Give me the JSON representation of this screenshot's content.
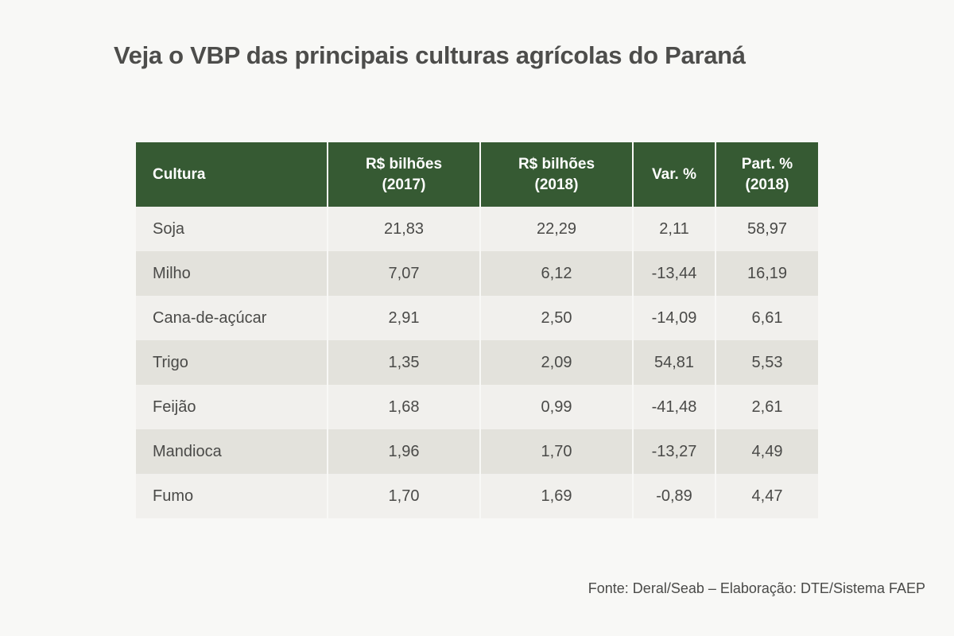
{
  "title": "Veja o VBP das principais culturas agrícolas do Paraná",
  "source": "Fonte: Deral/Seab – Elaboração: DTE/Sistema FAEP",
  "colors": {
    "header_bg": "#365a33",
    "row_light": "#f1f0ed",
    "row_dark": "#e3e2dc",
    "page_bg": "#f8f8f6"
  },
  "chart_data": {
    "type": "table",
    "title": "Veja o VBP das principais culturas agrícolas do Paraná",
    "columns": [
      {
        "line1": "Cultura",
        "line2": ""
      },
      {
        "line1": "R$ bilhões",
        "line2": "(2017)"
      },
      {
        "line1": "R$ bilhões",
        "line2": "(2018)"
      },
      {
        "line1": "Var. %",
        "line2": ""
      },
      {
        "line1": "Part. %",
        "line2": "(2018)"
      }
    ],
    "rows": [
      [
        "Soja",
        "21,83",
        "22,29",
        "2,11",
        "58,97"
      ],
      [
        "Milho",
        "7,07",
        "6,12",
        "-13,44",
        "16,19"
      ],
      [
        "Cana-de-açúcar",
        "2,91",
        "2,50",
        "-14,09",
        "6,61"
      ],
      [
        "Trigo",
        "1,35",
        "2,09",
        "54,81",
        "5,53"
      ],
      [
        "Feijão",
        "1,68",
        "0,99",
        "-41,48",
        "2,61"
      ],
      [
        "Mandioca",
        "1,96",
        "1,70",
        "-13,27",
        "4,49"
      ],
      [
        "Fumo",
        "1,70",
        "1,69",
        "-0,89",
        "4,47"
      ]
    ]
  }
}
